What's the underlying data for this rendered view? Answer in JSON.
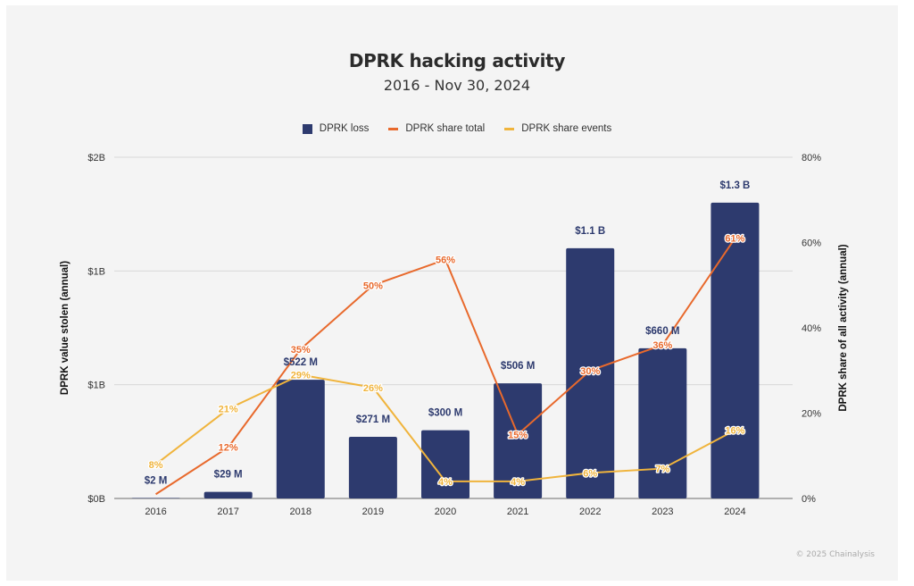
{
  "chart_data": {
    "type": "bar",
    "title": "DPRK hacking activity",
    "subtitle": "2016 - Nov 30, 2024",
    "categories": [
      "2016",
      "2017",
      "2018",
      "2019",
      "2020",
      "2021",
      "2022",
      "2023",
      "2024"
    ],
    "series": [
      {
        "name": "DPRK loss",
        "type": "bar",
        "axis": "left",
        "color": "#2d3a6e",
        "unit": "USD billions",
        "values": [
          0.002,
          0.029,
          0.522,
          0.271,
          0.3,
          0.506,
          1.1,
          0.66,
          1.3
        ],
        "labels": [
          "$2  M",
          "$29  M",
          "$522  M",
          "$271  M",
          "$300  M",
          "$506  M",
          "$1.1 B",
          "$660  M",
          "$1.3 B"
        ]
      },
      {
        "name": "DPRK share total",
        "type": "line",
        "axis": "right",
        "color": "#e8692c",
        "unit": "percent",
        "values": [
          1,
          12,
          35,
          50,
          56,
          15,
          30,
          36,
          61
        ],
        "labels": [
          "",
          "12%",
          "35%",
          "50%",
          "56%",
          "15%",
          "30%",
          "36%",
          "61%"
        ]
      },
      {
        "name": "DPRK share events",
        "type": "line",
        "axis": "right",
        "color": "#f0b43c",
        "unit": "percent",
        "values": [
          8,
          21,
          29,
          26,
          4,
          4,
          6,
          7,
          16
        ],
        "labels": [
          "8%",
          "21%",
          "29%",
          "26%",
          "4%",
          "4%",
          "6%",
          "7%",
          "16%"
        ]
      }
    ],
    "y_left": {
      "label": "DPRK value stolen (annual)",
      "range": [
        0,
        1.5
      ],
      "ticks": [
        0,
        0.5,
        1.0,
        1.5
      ],
      "tick_labels": [
        "$0B",
        "$1B",
        "$1B",
        "$2B"
      ]
    },
    "y_right": {
      "label": "DPRK share of all activity (annual)",
      "range": [
        0,
        80
      ],
      "ticks": [
        0,
        20,
        40,
        60,
        80
      ],
      "tick_labels": [
        "0%",
        "20%",
        "40%",
        "60%",
        "80%"
      ]
    },
    "grid": true,
    "legend": "top-center"
  },
  "legend": [
    {
      "label": "DPRK loss",
      "kind": "box",
      "color": "#2d3a6e"
    },
    {
      "label": "DPRK share total",
      "kind": "line",
      "color": "#e8692c"
    },
    {
      "label": "DPRK share events",
      "kind": "line",
      "color": "#f0b43c"
    }
  ],
  "footer": "© 2025 Chainalysis"
}
